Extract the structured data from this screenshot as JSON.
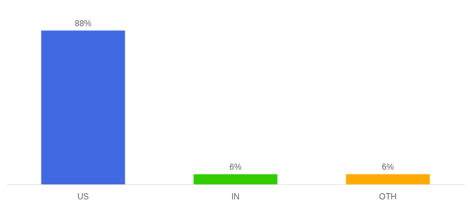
{
  "chart_data": {
    "type": "bar",
    "categories": [
      "US",
      "IN",
      "OTH"
    ],
    "values": [
      88,
      6,
      6
    ],
    "value_labels": [
      "88%",
      "6%",
      "6%"
    ],
    "colors": [
      "#4169e1",
      "#33cc00",
      "#ffaa00"
    ],
    "ylim": [
      0,
      96
    ],
    "grid": false,
    "data_labels": true,
    "tick_labels": "x"
  }
}
